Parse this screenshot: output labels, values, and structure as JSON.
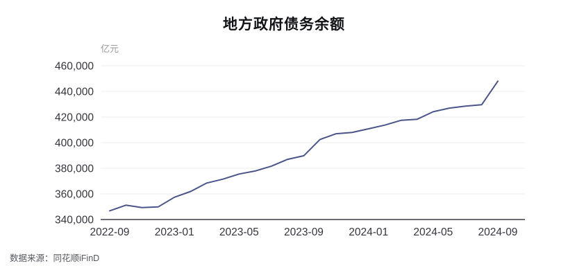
{
  "header": {
    "title": "地方政府债务余额"
  },
  "footer": {
    "source": "数据来源：同花顺iFinD"
  },
  "colors": {
    "line": "#4a5488",
    "axis_text": "#33343c",
    "grid_line": "#ececef",
    "axis_line": "#3b3c46",
    "unit_text": "#98999f",
    "source_text": "#55575f",
    "title_text": "#111216",
    "background": "#ffffff"
  },
  "chart_data": {
    "type": "line",
    "title": "地方政府债务余额",
    "unit_label": "亿元",
    "xlabel": "",
    "ylabel": "亿元",
    "x": [
      "2022-09",
      "2022-10",
      "2022-11",
      "2022-12",
      "2023-01",
      "2023-02",
      "2023-03",
      "2023-04",
      "2023-05",
      "2023-06",
      "2023-07",
      "2023-08",
      "2023-09",
      "2023-10",
      "2023-11",
      "2023-12",
      "2024-01",
      "2024-02",
      "2024-03",
      "2024-04",
      "2024-05",
      "2024-06",
      "2024-07",
      "2024-08",
      "2024-09"
    ],
    "values": [
      346800,
      351200,
      349300,
      349900,
      357400,
      361900,
      368500,
      371500,
      375500,
      377900,
      381700,
      387000,
      389800,
      402500,
      407000,
      408000,
      410800,
      413700,
      417400,
      418200,
      424100,
      427000,
      428500,
      429600,
      448000
    ],
    "x_tick_labels": [
      "2022-09",
      "2023-01",
      "2023-05",
      "2023-09",
      "2024-01",
      "2024-05",
      "2024-09"
    ],
    "y_ticks": [
      340000,
      360000,
      380000,
      400000,
      420000,
      440000,
      460000
    ],
    "ylim": [
      340000,
      460000
    ],
    "grid": true,
    "legend": "none",
    "series_name": "地方政府债务余额"
  }
}
